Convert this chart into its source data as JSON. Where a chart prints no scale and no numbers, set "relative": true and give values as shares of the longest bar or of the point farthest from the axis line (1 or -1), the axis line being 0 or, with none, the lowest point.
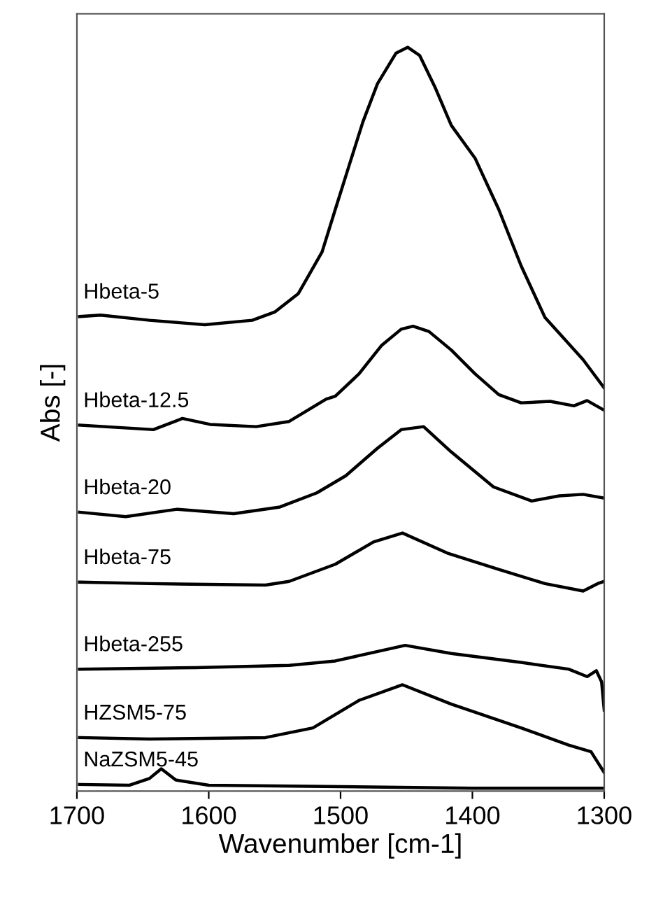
{
  "chart_data": {
    "type": "line",
    "relative": true,
    "xlabel": "Wavenumber [cm-1]",
    "ylabel": "Abs [-]",
    "xlim": [
      1700,
      1300
    ],
    "xticks": [
      1700,
      1600,
      1500,
      1400,
      1300
    ],
    "line_style": "solid",
    "series": [
      {
        "name": "Hbeta-5",
        "color": "#000000",
        "x": [
          1698,
          1682,
          1645,
          1603,
          1567,
          1550,
          1532,
          1514,
          1504,
          1493,
          1483,
          1472,
          1458,
          1449,
          1440,
          1428,
          1416,
          1398,
          1380,
          1363,
          1345,
          1316,
          1300
        ],
        "values": [
          0.638,
          0.64,
          0.633,
          0.627,
          0.633,
          0.644,
          0.669,
          0.725,
          0.782,
          0.844,
          0.9,
          0.951,
          0.992,
          1.0,
          0.989,
          0.945,
          0.895,
          0.851,
          0.782,
          0.706,
          0.637,
          0.58,
          0.542
        ]
      },
      {
        "name": "Hbeta-12.5",
        "color": "#000000",
        "x": [
          1698,
          1642,
          1620,
          1599,
          1564,
          1539,
          1511,
          1504,
          1486,
          1469,
          1454,
          1445,
          1433,
          1416,
          1398,
          1380,
          1363,
          1341,
          1323,
          1313,
          1300
        ],
        "values": [
          0.492,
          0.486,
          0.501,
          0.493,
          0.49,
          0.497,
          0.527,
          0.531,
          0.561,
          0.599,
          0.621,
          0.625,
          0.618,
          0.593,
          0.561,
          0.533,
          0.522,
          0.524,
          0.518,
          0.525,
          0.512
        ]
      },
      {
        "name": "Hbeta-20",
        "color": "#000000",
        "x": [
          1698,
          1663,
          1624,
          1581,
          1546,
          1518,
          1496,
          1472,
          1454,
          1437,
          1416,
          1384,
          1355,
          1334,
          1316,
          1300
        ],
        "values": [
          0.375,
          0.369,
          0.379,
          0.373,
          0.382,
          0.401,
          0.424,
          0.461,
          0.486,
          0.49,
          0.456,
          0.409,
          0.39,
          0.397,
          0.399,
          0.394
        ]
      },
      {
        "name": "Hbeta-75",
        "color": "#000000",
        "x": [
          1698,
          1645,
          1557,
          1539,
          1504,
          1475,
          1453,
          1419,
          1380,
          1345,
          1316,
          1305,
          1300
        ],
        "values": [
          0.281,
          0.279,
          0.277,
          0.282,
          0.305,
          0.335,
          0.347,
          0.32,
          0.298,
          0.279,
          0.269,
          0.279,
          0.282
        ]
      },
      {
        "name": "Hbeta-255",
        "color": "#000000",
        "x": [
          1698,
          1610,
          1539,
          1504,
          1451,
          1416,
          1363,
          1327,
          1313,
          1306,
          1302,
          1300
        ],
        "values": [
          0.164,
          0.166,
          0.169,
          0.175,
          0.196,
          0.185,
          0.173,
          0.164,
          0.154,
          0.162,
          0.147,
          0.109
        ]
      },
      {
        "name": "HZSM5-75",
        "color": "#000000",
        "x": [
          1698,
          1645,
          1557,
          1521,
          1486,
          1453,
          1416,
          1363,
          1327,
          1310,
          1300
        ],
        "values": [
          0.072,
          0.07,
          0.072,
          0.085,
          0.122,
          0.143,
          0.117,
          0.085,
          0.062,
          0.053,
          0.025
        ]
      },
      {
        "name": "NaZSM5-45",
        "color": "#000000",
        "x": [
          1698,
          1660,
          1645,
          1636,
          1625,
          1600,
          1500,
          1400,
          1300
        ],
        "values": [
          0.009,
          0.008,
          0.017,
          0.03,
          0.015,
          0.008,
          0.006,
          0.004,
          0.004
        ]
      }
    ]
  }
}
